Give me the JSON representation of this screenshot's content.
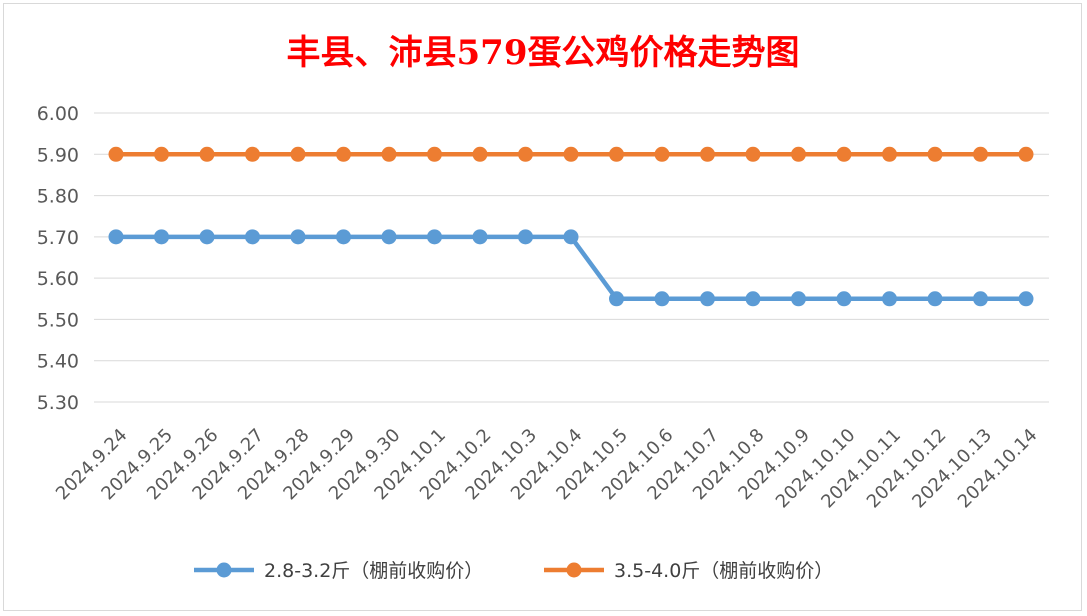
{
  "chart_data": {
    "type": "line",
    "title": "丰县、沛县579蛋公鸡价格走势图",
    "categories": [
      "2024.9.24",
      "2024.9.25",
      "2024.9.26",
      "2024.9.27",
      "2024.9.28",
      "2024.9.29",
      "2024.9.30",
      "2024.10.1",
      "2024.10.2",
      "2024.10.3",
      "2024.10.4",
      "2024.10.5",
      "2024.10.6",
      "2024.10.7",
      "2024.10.8",
      "2024.10.9",
      "2024.10.10",
      "2024.10.11",
      "2024.10.12",
      "2024.10.13",
      "2024.10.14"
    ],
    "y_ticks": [
      "6.00",
      "5.90",
      "5.80",
      "5.70",
      "5.60",
      "5.50",
      "5.40",
      "5.30"
    ],
    "ylim": [
      5.3,
      6.0
    ],
    "grid": true,
    "legend_position": "bottom",
    "series": [
      {
        "name": "2.8-3.2斤（棚前收购价）",
        "color": "#5b9bd5",
        "values": [
          5.7,
          5.7,
          5.7,
          5.7,
          5.7,
          5.7,
          5.7,
          5.7,
          5.7,
          5.7,
          5.7,
          5.55,
          5.55,
          5.55,
          5.55,
          5.55,
          5.55,
          5.55,
          5.55,
          5.55,
          5.55
        ]
      },
      {
        "name": "3.5-4.0斤（棚前收购价）",
        "color": "#ed7d31",
        "values": [
          5.9,
          5.9,
          5.9,
          5.9,
          5.9,
          5.9,
          5.9,
          5.9,
          5.9,
          5.9,
          5.9,
          5.9,
          5.9,
          5.9,
          5.9,
          5.9,
          5.9,
          5.9,
          5.9,
          5.9,
          5.9
        ]
      }
    ]
  }
}
